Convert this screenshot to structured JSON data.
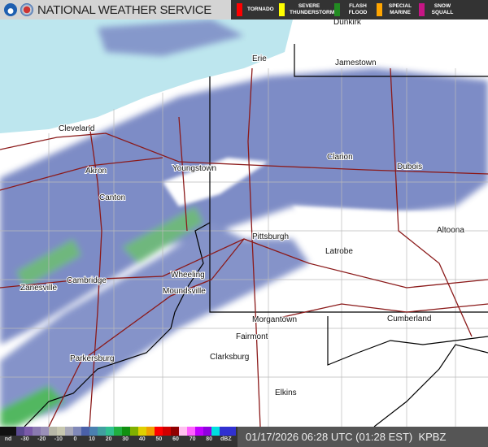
{
  "header": {
    "title": "NATIONAL WEATHER SERVICE",
    "logos": [
      "noaa-logo",
      "nws-logo"
    ]
  },
  "warnings": [
    {
      "label": "TORNADO",
      "color": "#ff0000"
    },
    {
      "label": "SEVERE THUNDERSTORM",
      "color": "#ffff00"
    },
    {
      "label": "FLASH FLOOD",
      "color": "#228b22"
    },
    {
      "label": "SPECIAL MARINE",
      "color": "#ffa500"
    },
    {
      "label": "SNOW SQUALL",
      "color": "#c71585"
    }
  ],
  "cities": [
    "Dunkirk",
    "Erie",
    "Jamestown",
    "Cleveland",
    "Akron",
    "Youngstown",
    "Clarion",
    "Dubois",
    "Canton",
    "Pittsburgh",
    "Altoona",
    "Latrobe",
    "Cambridge",
    "Wheeling",
    "Zanesville",
    "Moundsville",
    "Morgantown",
    "Cumberland",
    "Fairmont",
    "Clarksburg",
    "Parkersburg",
    "Elkins"
  ],
  "legend": {
    "ticks": [
      "nd",
      "-30",
      "-20",
      "-10",
      "0",
      "10",
      "20",
      "30",
      "40",
      "50",
      "60",
      "70",
      "80",
      "dBZ"
    ],
    "colors": [
      "#111",
      "#111",
      "#5a4a90",
      "#7a5aa8",
      "#8a7ab0",
      "#9a90b8",
      "#b8b8a8",
      "#c8c8b0",
      "#a8a8b8",
      "#8088b8",
      "#4a60a8",
      "#4a80b0",
      "#40a0a0",
      "#30c090",
      "#20b040",
      "#109010",
      "#80b000",
      "#e0d000",
      "#f0a000",
      "#ff0000",
      "#d00000",
      "#900000",
      "#ffc0f0",
      "#ff60ff",
      "#c000ff",
      "#9000e0",
      "#00e0e0",
      "#3030d0",
      "#3030d0"
    ]
  },
  "timestamp": "01/17/2026 06:28 UTC (01:28 EST)",
  "radar_site": "KPBZ"
}
